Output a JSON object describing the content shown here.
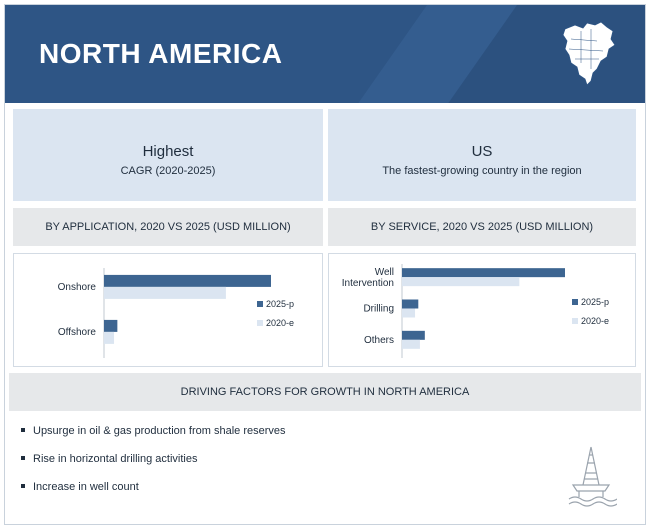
{
  "header": {
    "title": "NORTH AMERICA",
    "map_icon": "north-america-map-icon"
  },
  "highlights": [
    {
      "headline": "Highest",
      "caption": "CAGR (2020-2025)"
    },
    {
      "headline": "US",
      "caption": "The fastest-growing country in the region"
    }
  ],
  "section_titles": {
    "application": "BY APPLICATION,  2020 VS 2025 (USD MILLION)",
    "service": "BY SERVICE, 2020 VS 2025 (USD MILLION)"
  },
  "factors": {
    "title": "DRIVING FACTORS FOR GROWTH IN NORTH AMERICA",
    "items": [
      "Upsurge in oil & gas production from shale reserves",
      "Rise in horizontal drilling activities",
      "Increase in well count"
    ],
    "icon": "oil-rig-icon"
  },
  "colors": {
    "series_2025": "#3d6591",
    "series_2020": "#dbe5f1",
    "banner": "#2e5585"
  },
  "chart_data": [
    {
      "type": "bar",
      "orientation": "horizontal",
      "title": "BY APPLICATION,  2020 VS 2025 (USD MILLION)",
      "categories": [
        "Onshore",
        "Offshore"
      ],
      "series": [
        {
          "name": "2025-p",
          "values": [
            100,
            8
          ]
        },
        {
          "name": "2020-e",
          "values": [
            73,
            6
          ]
        }
      ],
      "xlim": [
        0,
        100
      ],
      "axis_values_shown": false,
      "legend": "right"
    },
    {
      "type": "bar",
      "orientation": "horizontal",
      "title": "BY SERVICE, 2020 VS 2025 (USD MILLION)",
      "categories": [
        "Well Intervention",
        "Drilling",
        "Others"
      ],
      "series": [
        {
          "name": "2025-p",
          "values": [
            100,
            10,
            14
          ]
        },
        {
          "name": "2020-e",
          "values": [
            72,
            8,
            11
          ]
        }
      ],
      "xlim": [
        0,
        100
      ],
      "axis_values_shown": false,
      "legend": "right"
    }
  ]
}
